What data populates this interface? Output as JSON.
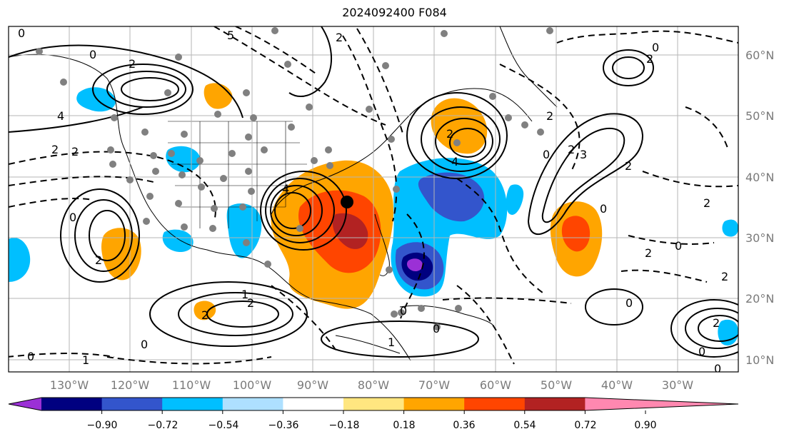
{
  "title": "2024092400 F084",
  "longitude_labels": [
    "130°W",
    "120°W",
    "110°W",
    "100°W",
    "90°W",
    "80°W",
    "70°W",
    "60°W",
    "50°W",
    "40°W",
    "30°W"
  ],
  "latitude_labels": [
    "60°N",
    "50°N",
    "40°N",
    "30°N",
    "20°N",
    "10°N"
  ],
  "contour_labels": [
    "0",
    "2",
    "4",
    "2",
    "0",
    "5",
    "2",
    "4",
    "2",
    "0",
    "2",
    "0",
    "2",
    "3",
    "2",
    "0",
    "2",
    "4",
    "2",
    "0",
    "1",
    "2",
    "0",
    "2",
    "0",
    "0",
    "2",
    "1",
    "0",
    "1",
    "2",
    "0",
    "2",
    "0",
    "2",
    "0",
    "2",
    "0"
  ],
  "colorbar": {
    "tick_labels": [
      "−0.90",
      "−0.72",
      "−0.54",
      "−0.36",
      "−0.18",
      "0.18",
      "0.36",
      "0.54",
      "0.72",
      "0.90"
    ],
    "colors": [
      "#9b30d6",
      "#000080",
      "#3355cc",
      "#00bfff",
      "#aee0ff",
      "#ffffff",
      "#ffe680",
      "#ffa500",
      "#ff4500",
      "#b22222",
      "#ff88b0"
    ]
  },
  "markers": {
    "storm_center": "storm-center-marker"
  }
}
